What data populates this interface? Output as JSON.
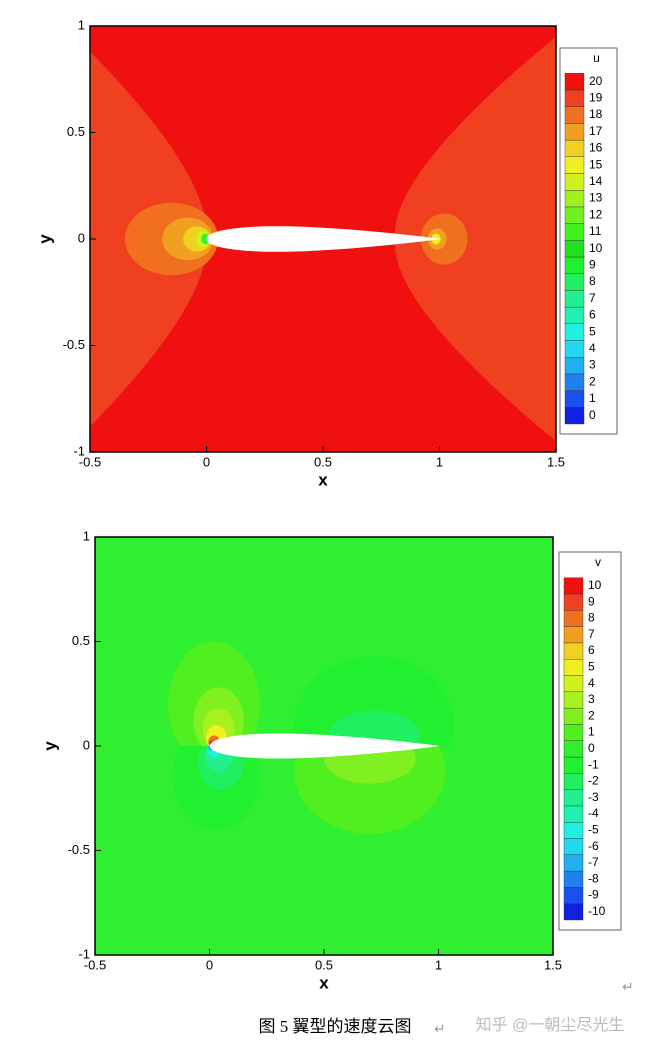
{
  "chart_data": [
    {
      "type": "contour",
      "legend_title": "u",
      "x_label": "x",
      "y_label": "y",
      "xlim": [
        -0.5,
        1.5
      ],
      "ylim": [
        -1,
        1
      ],
      "xticks": [
        -0.5,
        0,
        0.5,
        1,
        1.5
      ],
      "yticks": [
        -1,
        -0.5,
        0,
        0.5,
        1
      ],
      "levels": [
        0,
        1,
        2,
        3,
        4,
        5,
        6,
        7,
        8,
        9,
        10,
        11,
        12,
        13,
        14,
        15,
        16,
        17,
        18,
        19,
        20
      ],
      "colors": [
        "#1020e0",
        "#1a50f0",
        "#2080f0",
        "#20b0f0",
        "#20d8f0",
        "#20f0e0",
        "#20f0b0",
        "#20f090",
        "#20f060",
        "#20f030",
        "#20e020",
        "#40f020",
        "#70f020",
        "#a0f020",
        "#d0f020",
        "#f0f020",
        "#f0d020",
        "#f0a020",
        "#f07020",
        "#f04020",
        "#f01010"
      ]
    },
    {
      "type": "contour",
      "legend_title": "v",
      "x_label": "x",
      "y_label": "y",
      "xlim": [
        -0.5,
        1.5
      ],
      "ylim": [
        -1,
        1
      ],
      "xticks": [
        -0.5,
        0,
        0.5,
        1,
        1.5
      ],
      "yticks": [
        -1,
        -0.5,
        0,
        0.5,
        1
      ],
      "levels": [
        -10,
        -9,
        -8,
        -7,
        -6,
        -5,
        -4,
        -3,
        -2,
        -1,
        0,
        1,
        2,
        3,
        4,
        5,
        6,
        7,
        8,
        9,
        10
      ],
      "colors": [
        "#1020e0",
        "#1a50f0",
        "#2080f0",
        "#20b0f0",
        "#20d8f0",
        "#20f0e0",
        "#20f0b0",
        "#20f090",
        "#20f060",
        "#20f030",
        "#30ee30",
        "#50f020",
        "#80f020",
        "#a8f020",
        "#d0f020",
        "#f0f020",
        "#f0d020",
        "#f0a020",
        "#f07020",
        "#f04020",
        "#f01010"
      ]
    }
  ],
  "caption": "图 5  翼型的速度云图",
  "return_mark": "↵",
  "watermark": "知乎 @一朝尘尽光生"
}
